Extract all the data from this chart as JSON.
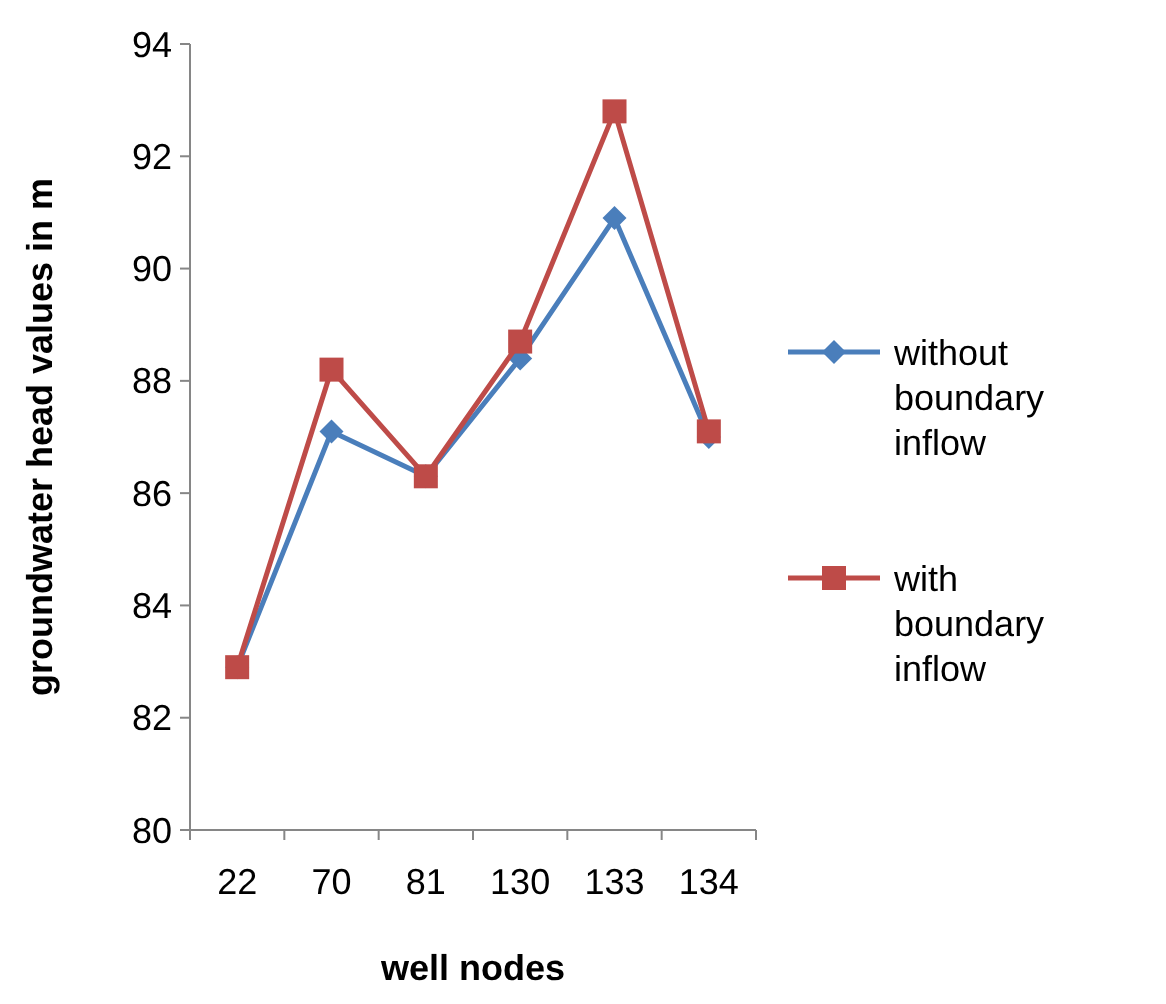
{
  "chart_data": {
    "type": "line",
    "xlabel": "well nodes",
    "ylabel": "groundwater head values in m",
    "categories": [
      "22",
      "70",
      "81",
      "130",
      "133",
      "134"
    ],
    "series": [
      {
        "name": "without boundary inflow",
        "color": "#4a7ebb",
        "marker": "diamond",
        "values": [
          82.9,
          87.1,
          86.3,
          88.4,
          90.9,
          87.0
        ]
      },
      {
        "name": "with boundary inflow",
        "color": "#be4b48",
        "marker": "square",
        "values": [
          82.9,
          88.2,
          86.3,
          88.7,
          92.8,
          87.1
        ]
      }
    ],
    "ylim": [
      80,
      94
    ],
    "yticks": [
      80,
      82,
      84,
      86,
      88,
      90,
      92,
      94
    ],
    "grid": false,
    "legend": "right",
    "line_style": "solid"
  }
}
